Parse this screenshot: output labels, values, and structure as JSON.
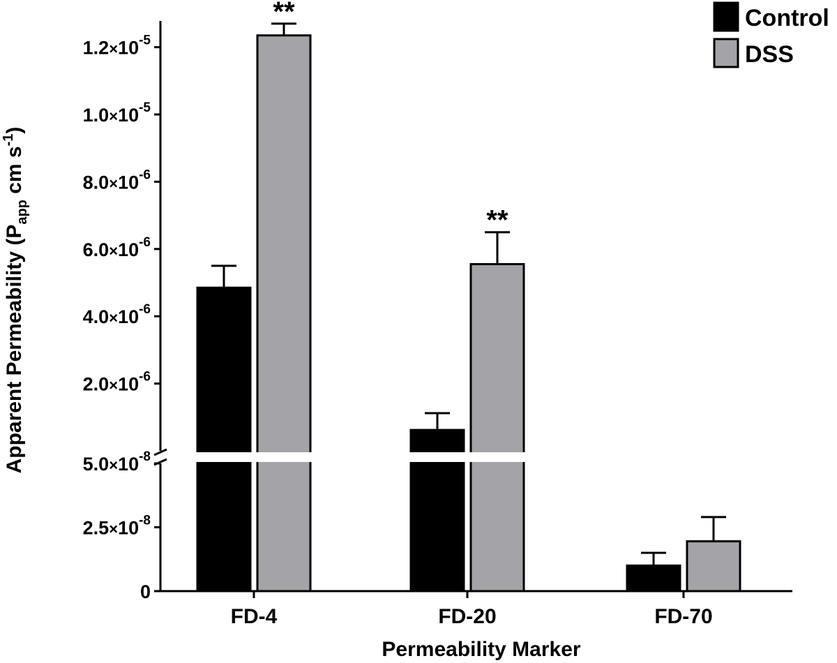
{
  "chart_data": {
    "type": "bar",
    "title": "",
    "xlabel": "Permeability Marker",
    "ylabel": "Apparent Permeability (Papp cm s-1)",
    "ylabel_parts": {
      "main": "Apparent Permeability (P",
      "sub": "app",
      "unit": " cm s",
      "sup": "-1",
      "close": ")"
    },
    "categories": [
      "FD-4",
      "FD-20",
      "FD-70"
    ],
    "series": [
      {
        "name": "Control",
        "color": "#000000",
        "values": [
          4.85e-06,
          6.2e-07,
          1e-08
        ],
        "errors": [
          6.5e-07,
          5e-07,
          5e-09
        ]
      },
      {
        "name": "DSS",
        "color": "#a3a3a8",
        "values": [
          1.235e-05,
          5.55e-06,
          1.95e-08
        ],
        "errors": [
          3.5e-07,
          9.5e-07,
          9.5e-09
        ]
      }
    ],
    "significance": [
      {
        "category": "FD-4",
        "series": "DSS",
        "label": "**"
      },
      {
        "category": "FD-20",
        "series": "DSS",
        "label": "**"
      }
    ],
    "y_axis_broken": true,
    "y_lower_segment": {
      "ylim": [
        0,
        5e-08
      ],
      "ticks": [
        {
          "value": 0,
          "label": "0"
        },
        {
          "value": 2.5e-08,
          "mant": "2.5",
          "exp": "-8"
        },
        {
          "value": 5e-08,
          "mant": "5.0",
          "exp": "-8"
        }
      ]
    },
    "y_upper_segment": {
      "ylim": [
        0,
        1.3e-05
      ],
      "ticks": [
        {
          "value": 2e-06,
          "mant": "2.0",
          "exp": "-6"
        },
        {
          "value": 4e-06,
          "mant": "4.0",
          "exp": "-6"
        },
        {
          "value": 6e-06,
          "mant": "6.0",
          "exp": "-6"
        },
        {
          "value": 8e-06,
          "mant": "8.0",
          "exp": "-6"
        },
        {
          "value": 1e-05,
          "mant": "1.0",
          "exp": "-5"
        },
        {
          "value": 1.2e-05,
          "mant": "1.2",
          "exp": "-5"
        }
      ]
    },
    "legend_position": "top-right"
  }
}
